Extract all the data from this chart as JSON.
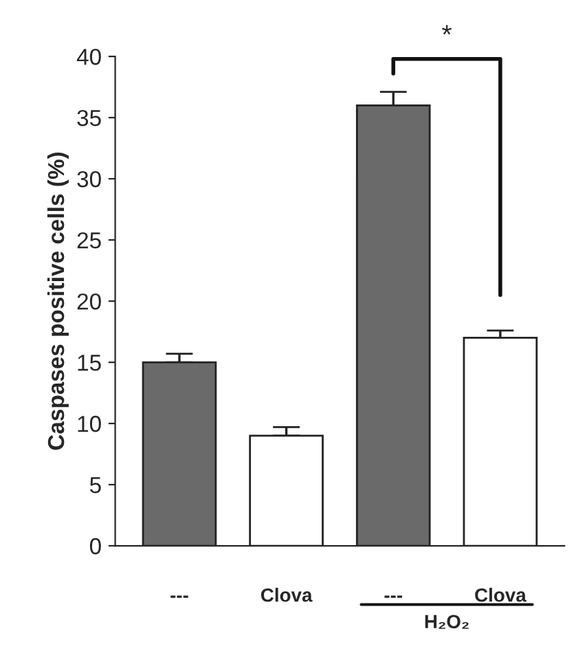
{
  "chart_data": {
    "type": "bar",
    "ylabel": "Caspases positive cells (%)",
    "categories": [
      "---",
      "Clova",
      "---",
      "Clova"
    ],
    "values": [
      15,
      9,
      36,
      17
    ],
    "errors": [
      [
        15,
        15.7
      ],
      [
        9,
        9.7
      ],
      [
        36,
        37.1
      ],
      [
        17,
        17.6
      ]
    ],
    "colors": [
      "#6a6a6a",
      "#ffffff",
      "#6a6a6a",
      "#ffffff"
    ],
    "ylim": [
      0,
      40
    ],
    "yticks": [
      0,
      5,
      10,
      15,
      20,
      25,
      30,
      35,
      40
    ],
    "grid": false,
    "legend": false,
    "annotations": [
      "*",
      "H₂O₂"
    ]
  }
}
